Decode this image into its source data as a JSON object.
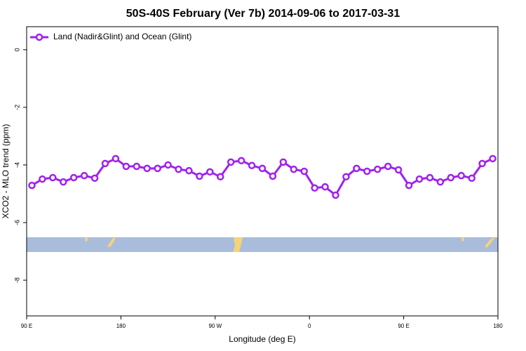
{
  "chart_data": {
    "type": "line",
    "title": "50S-40S February (Ver 7b)   2014-09-06 to 2017-03-31",
    "x_label": "Longitude (deg E)",
    "y_label": "XCO2 - MLO trend (ppm)",
    "x": [
      95,
      105,
      115,
      125,
      135,
      145,
      155,
      165,
      175,
      185,
      195,
      205,
      215,
      225,
      235,
      245,
      255,
      265,
      275,
      285,
      295,
      305,
      315,
      325,
      335,
      345,
      355,
      365,
      375,
      385,
      395,
      405,
      415,
      425,
      435,
      445,
      455,
      465,
      475,
      485,
      495,
      505,
      515,
      525,
      535
    ],
    "series": [
      {
        "name": "Land (Nadir&Glint) and Ocean (Glint)",
        "color": "#a020f0",
        "values": [
          -4.71,
          -4.49,
          -4.44,
          -4.59,
          -4.44,
          -4.37,
          -4.46,
          -3.95,
          -3.78,
          -4.05,
          -4.05,
          -4.12,
          -4.12,
          -4.0,
          -4.15,
          -4.2,
          -4.39,
          -4.24,
          -4.41,
          -3.9,
          -3.85,
          -4.02,
          -4.12,
          -4.39,
          -3.9,
          -4.15,
          -4.22,
          -4.8,
          -4.76,
          -5.05,
          -4.41,
          -4.12,
          -4.22,
          -4.15,
          -4.05,
          -4.17,
          -4.71,
          -4.49,
          -4.44,
          -4.59,
          -4.44,
          -4.37,
          -4.46,
          -3.95,
          -3.78
        ]
      }
    ],
    "xlim": [
      90,
      540
    ],
    "xticks": [
      {
        "value": 90,
        "label": "90 E"
      },
      {
        "value": 180,
        "label": "180"
      },
      {
        "value": 270,
        "label": "90 W"
      },
      {
        "value": 360,
        "label": "0"
      },
      {
        "value": 450,
        "label": "90 E"
      },
      {
        "value": 540,
        "label": "180"
      }
    ],
    "ylim": [
      -9.24,
      0.8
    ],
    "yticks": [
      0,
      -2,
      -4,
      -6,
      -8
    ],
    "legend": "top-left"
  }
}
